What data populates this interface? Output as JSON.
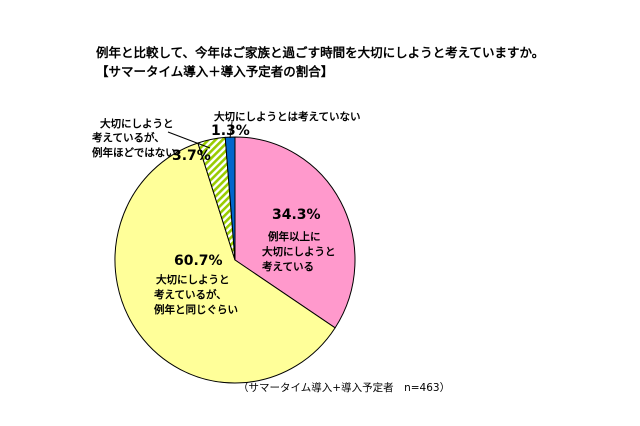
{
  "chart_data": {
    "type": "pie",
    "title": "例年と比較して、今年はご家族と過ごす時間を大切にしようと考えていますか。",
    "subtitle": "【サマータイム導入＋導入予定者の割合】",
    "note": "（サマータイム導入+導入予定者　n=463）",
    "slices": [
      {
        "label_lines": [
          "例年以上に",
          "大切にしようと",
          "考えている"
        ],
        "value": 34.3,
        "value_text": "34.3%",
        "color": "#FF99CC",
        "pattern": "solid"
      },
      {
        "label_lines": [
          "大切にしようと",
          "考えているが、",
          "例年と同じぐらい"
        ],
        "value": 60.7,
        "value_text": "60.7%",
        "color": "#FFFF99",
        "pattern": "solid"
      },
      {
        "label_lines": [
          "大切にしようと",
          "考えているが、",
          "例年ほどではない"
        ],
        "value": 3.7,
        "value_text": "3.7%",
        "color": "#99CC00",
        "pattern": "hatch"
      },
      {
        "label_lines": [
          "大切にしようとは考えていない"
        ],
        "value": 1.3,
        "value_text": "1.3%",
        "color": "#0066CC",
        "pattern": "solid"
      }
    ]
  }
}
